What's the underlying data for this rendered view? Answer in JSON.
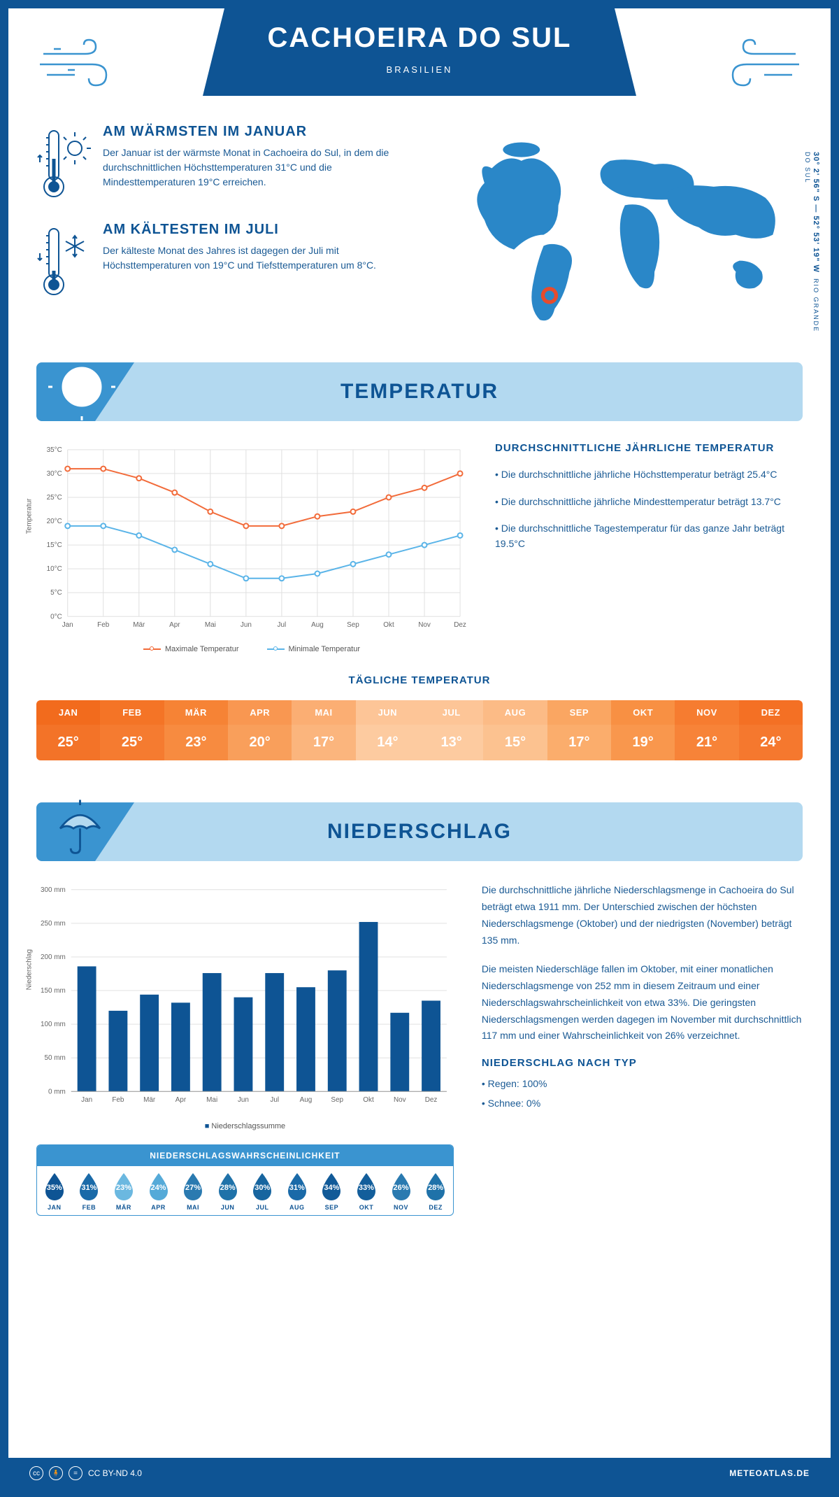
{
  "header": {
    "city": "CACHOEIRA DO SUL",
    "country": "BRASILIEN"
  },
  "coords": {
    "line": "30° 2' 56\" S — 52° 53' 19\" W",
    "region": "RIO GRANDE DO SUL"
  },
  "warm": {
    "title": "AM WÄRMSTEN IM JANUAR",
    "text": "Der Januar ist der wärmste Monat in Cachoeira do Sul, in dem die durchschnittlichen Höchsttemperaturen 31°C und die Mindesttemperaturen 19°C erreichen."
  },
  "cold": {
    "title": "AM KÄLTESTEN IM JULI",
    "text": "Der kälteste Monat des Jahres ist dagegen der Juli mit Höchsttemperaturen von 19°C und Tiefsttemperaturen um 8°C."
  },
  "temp_section": {
    "title": "TEMPERATUR",
    "info_title": "DURCHSCHNITTLICHE JÄHRLICHE TEMPERATUR",
    "bullet1": "• Die durchschnittliche jährliche Höchsttemperatur beträgt 25.4°C",
    "bullet2": "• Die durchschnittliche jährliche Mindesttemperatur beträgt 13.7°C",
    "bullet3": "• Die durchschnittliche Tagestemperatur für das ganze Jahr beträgt 19.5°C",
    "daily_label": "TÄGLICHE TEMPERATUR",
    "legend_max": "Maximale Temperatur",
    "legend_min": "Minimale Temperatur",
    "y_label": "Temperatur"
  },
  "line_chart": {
    "type": "line",
    "months": [
      "Jan",
      "Feb",
      "Mär",
      "Apr",
      "Mai",
      "Jun",
      "Jul",
      "Aug",
      "Sep",
      "Okt",
      "Nov",
      "Dez"
    ],
    "max_values": [
      31,
      31,
      29,
      26,
      22,
      19,
      19,
      21,
      22,
      25,
      27,
      30
    ],
    "min_values": [
      19,
      19,
      17,
      14,
      11,
      8,
      8,
      9,
      11,
      13,
      15,
      17
    ],
    "max_color": "#f26b3a",
    "min_color": "#5ab4e8",
    "ylim": [
      0,
      35
    ],
    "ytick_step": 5,
    "grid_color": "#e0e0e0",
    "background": "#ffffff",
    "marker": "circle",
    "line_width": 2
  },
  "temp_table": {
    "months": [
      "JAN",
      "FEB",
      "MÄR",
      "APR",
      "MAI",
      "JUN",
      "JUL",
      "AUG",
      "SEP",
      "OKT",
      "NOV",
      "DEZ"
    ],
    "values": [
      "25°",
      "25°",
      "23°",
      "20°",
      "17°",
      "14°",
      "13°",
      "15°",
      "17°",
      "19°",
      "21°",
      "24°"
    ],
    "header_colors": [
      "#f26b1d",
      "#f47426",
      "#f68335",
      "#f99751",
      "#fbae73",
      "#fdc597",
      "#fdc597",
      "#fcbb86",
      "#faa662",
      "#f89043",
      "#f67c30",
      "#f47024"
    ],
    "row_colors": [
      "#f37328",
      "#f57b30",
      "#f78b40",
      "#f99f5b",
      "#fbb57d",
      "#fdcba0",
      "#fdcba0",
      "#fcc290",
      "#fbad6c",
      "#f9974d",
      "#f78338",
      "#f5782e"
    ]
  },
  "precip_section": {
    "title": "NIEDERSCHLAG",
    "para1": "Die durchschnittliche jährliche Niederschlagsmenge in Cachoeira do Sul beträgt etwa 1911 mm. Der Unterschied zwischen der höchsten Niederschlagsmenge (Oktober) und der niedrigsten (November) beträgt 135 mm.",
    "para2": "Die meisten Niederschläge fallen im Oktober, mit einer monatlichen Niederschlagsmenge von 252 mm in diesem Zeitraum und einer Niederschlagswahrscheinlichkeit von etwa 33%. Die geringsten Niederschlagsmengen werden dagegen im November mit durchschnittlich 117 mm und einer Wahrscheinlichkeit von 26% verzeichnet.",
    "type_title": "NIEDERSCHLAG NACH TYP",
    "type1": "• Regen: 100%",
    "type2": "• Schnee: 0%",
    "y_label": "Niederschlag",
    "legend": "Niederschlagssumme"
  },
  "bar_chart": {
    "type": "bar",
    "months": [
      "Jan",
      "Feb",
      "Mär",
      "Apr",
      "Mai",
      "Jun",
      "Jul",
      "Aug",
      "Sep",
      "Okt",
      "Nov",
      "Dez"
    ],
    "values": [
      186,
      120,
      144,
      132,
      176,
      140,
      176,
      155,
      180,
      252,
      117,
      135
    ],
    "bar_color": "#0e5494",
    "ylim": [
      0,
      300
    ],
    "ytick_step": 50,
    "grid_color": "#e0e0e0",
    "background": "#ffffff",
    "bar_width": 0.6
  },
  "prob": {
    "title": "NIEDERSCHLAGSWAHRSCHEINLICHKEIT",
    "months": [
      "JAN",
      "FEB",
      "MÄR",
      "APR",
      "MAI",
      "JUN",
      "JUL",
      "AUG",
      "SEP",
      "OKT",
      "NOV",
      "DEZ"
    ],
    "values": [
      "35%",
      "31%",
      "23%",
      "24%",
      "27%",
      "28%",
      "30%",
      "31%",
      "34%",
      "33%",
      "26%",
      "28%"
    ],
    "colors": [
      "#0e5494",
      "#1a6aa8",
      "#6bb8e0",
      "#55aad8",
      "#2a7ab0",
      "#1f72a9",
      "#17659f",
      "#1a6aa8",
      "#115a98",
      "#135e9b",
      "#2a7ab0",
      "#1f72a9"
    ]
  },
  "footer": {
    "license": "CC BY-ND 4.0",
    "brand": "METEOATLAS.DE"
  },
  "colors": {
    "primary": "#0e5494",
    "light_blue": "#b3d9f0",
    "mid_blue": "#3a94d0",
    "map_blue": "#2a87c8",
    "marker": "#e84b2c"
  }
}
